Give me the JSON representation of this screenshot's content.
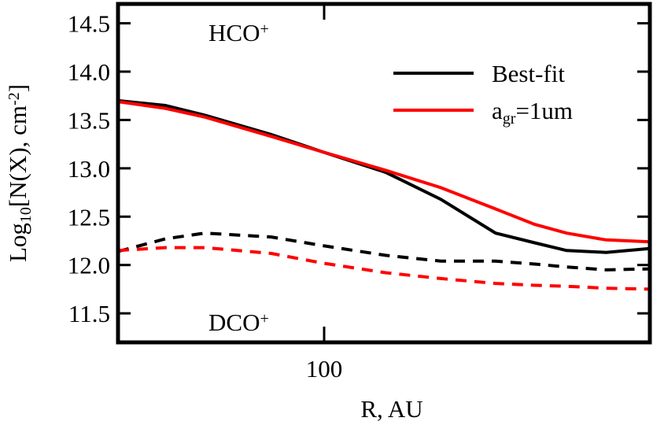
{
  "chart_data": {
    "type": "line",
    "xscale": "log",
    "x": [
      50,
      58.6,
      66.9,
      83.7,
      99.5,
      122.9,
      148,
      178,
      203,
      226,
      258,
      299
    ],
    "xlim": [
      50,
      299
    ],
    "xticks": [
      100
    ],
    "ylim": [
      11.2,
      14.7
    ],
    "yticks": [
      {
        "value": 11.5,
        "label": "11.5"
      },
      {
        "value": 12,
        "label": "12.0"
      },
      {
        "value": 12.5,
        "label": "12.5"
      },
      {
        "value": 13,
        "label": "13.0"
      },
      {
        "value": 13.5,
        "label": "13.5"
      },
      {
        "value": 14,
        "label": "14.0"
      },
      {
        "value": 14.5,
        "label": "14.5"
      }
    ],
    "xlabel": "R, AU",
    "ylabel": [
      {
        "text": "Log"
      },
      {
        "text": "10",
        "script": "sub"
      },
      {
        "text": "[N(X), cm"
      },
      {
        "text": "-2",
        "script": "sup"
      },
      {
        "text": "]"
      }
    ],
    "annotations": [
      {
        "parts": [
          {
            "text": "HCO"
          },
          {
            "text": "+",
            "script": "sup"
          }
        ]
      },
      {
        "parts": [
          {
            "text": "DCO"
          },
          {
            "text": "+",
            "script": "sup"
          }
        ]
      }
    ],
    "series": [
      {
        "name": [
          {
            "text": "Best-fit"
          }
        ],
        "color": "#000000",
        "dash": false,
        "values": [
          13.7,
          13.65,
          13.55,
          13.35,
          13.17,
          12.96,
          12.68,
          12.33,
          12.23,
          12.15,
          12.13,
          12.17
        ]
      },
      {
        "name": [
          {
            "text": "a"
          },
          {
            "text": "gr",
            "script": "sub"
          },
          {
            "text": "=1um"
          }
        ],
        "color": "#ff0000",
        "dash": false,
        "values": [
          13.69,
          13.62,
          13.53,
          13.33,
          13.17,
          12.98,
          12.8,
          12.58,
          12.42,
          12.33,
          12.26,
          12.24
        ]
      },
      {
        "color": "#000000",
        "dash": true,
        "values": [
          12.14,
          12.27,
          12.33,
          12.29,
          12.2,
          12.1,
          12.04,
          12.04,
          12.01,
          11.98,
          11.95,
          11.96
        ]
      },
      {
        "color": "#ff0000",
        "dash": true,
        "values": [
          12.15,
          12.18,
          12.18,
          12.12,
          12.02,
          11.92,
          11.86,
          11.81,
          11.79,
          11.78,
          11.76,
          11.75
        ]
      }
    ]
  }
}
